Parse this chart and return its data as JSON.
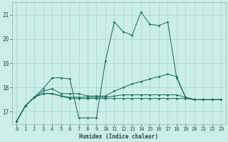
{
  "background_color": "#cceee8",
  "grid_color": "#aad8d0",
  "line_color": "#1a6e5e",
  "xlabel": "Humidex (Indice chaleur)",
  "ylim": [
    16.5,
    21.5
  ],
  "xlim": [
    -0.5,
    23.5
  ],
  "yticks": [
    17,
    18,
    19,
    20,
    21
  ],
  "xticks": [
    0,
    1,
    2,
    3,
    4,
    5,
    6,
    7,
    8,
    9,
    10,
    11,
    12,
    13,
    14,
    15,
    16,
    17,
    18,
    19,
    20,
    21,
    22,
    23
  ],
  "series": [
    [
      16.6,
      17.25,
      17.6,
      17.95,
      18.4,
      18.4,
      18.35,
      16.75,
      16.75,
      16.75,
      19.1,
      20.7,
      20.3,
      20.15,
      21.1,
      20.6,
      20.55,
      20.7,
      18.4,
      17.6,
      17.5,
      17.5,
      17.5,
      17.5
    ],
    [
      16.6,
      17.25,
      17.6,
      17.85,
      17.95,
      17.75,
      17.75,
      17.75,
      17.65,
      17.65,
      17.65,
      17.85,
      18.0,
      18.15,
      18.25,
      18.35,
      18.45,
      18.55,
      18.45,
      17.6,
      17.5,
      17.5,
      17.5,
      17.5
    ],
    [
      16.6,
      17.25,
      17.6,
      17.75,
      17.75,
      17.65,
      17.6,
      17.6,
      17.6,
      17.6,
      17.6,
      17.65,
      17.7,
      17.7,
      17.7,
      17.7,
      17.7,
      17.7,
      17.7,
      17.6,
      17.5,
      17.5,
      17.5,
      17.5
    ],
    [
      16.6,
      17.25,
      17.6,
      17.75,
      17.75,
      17.65,
      17.55,
      17.55,
      17.55,
      17.55,
      17.55,
      17.55,
      17.55,
      17.55,
      17.55,
      17.55,
      17.55,
      17.55,
      17.55,
      17.55,
      17.5,
      17.5,
      17.5,
      17.5
    ]
  ]
}
